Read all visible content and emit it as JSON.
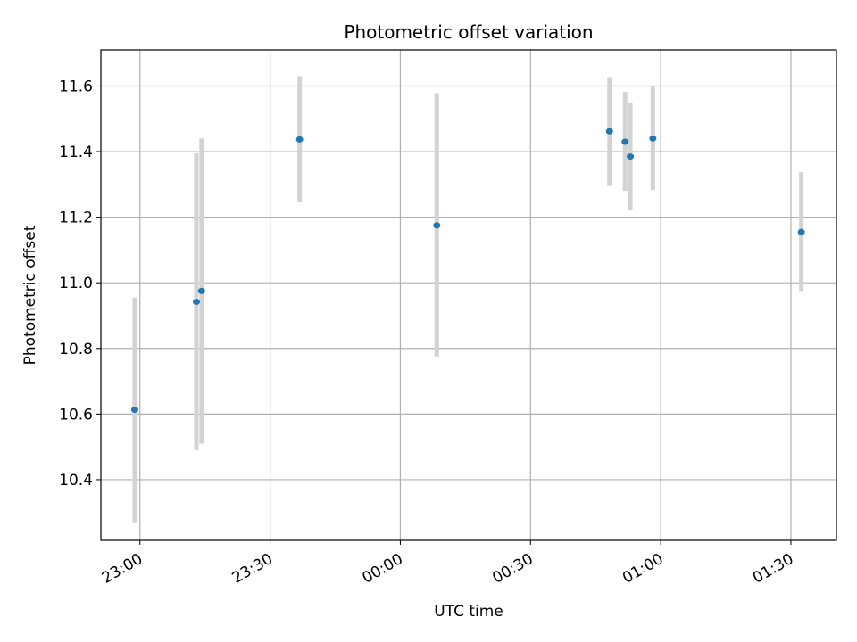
{
  "chart_data": {
    "type": "scatter",
    "title": "Photometric offset variation",
    "xlabel": "UTC time",
    "ylabel": "Photometric offset",
    "x_unit": "minutes relative to 00:00 UTC",
    "xlim": [
      -69.0,
      100.5
    ],
    "ylim": [
      10.215,
      11.71
    ],
    "x_ticks": [
      {
        "value": -60,
        "label": "23:00"
      },
      {
        "value": -30,
        "label": "23:30"
      },
      {
        "value": 0,
        "label": "00:00"
      },
      {
        "value": 30,
        "label": "00:30"
      },
      {
        "value": 60,
        "label": "01:00"
      },
      {
        "value": 90,
        "label": "01:30"
      }
    ],
    "y_ticks": [
      {
        "value": 10.4,
        "label": "10.4"
      },
      {
        "value": 10.6,
        "label": "10.6"
      },
      {
        "value": 10.8,
        "label": "10.8"
      },
      {
        "value": 11.0,
        "label": "11.0"
      },
      {
        "value": 11.2,
        "label": "11.2"
      },
      {
        "value": 11.4,
        "label": "11.4"
      },
      {
        "value": 11.6,
        "label": "11.6"
      }
    ],
    "grid": true,
    "series": [
      {
        "marker_color": "#1f77b4",
        "errorbar_color": "#d3d3d3",
        "points": [
          {
            "time": "22:58:48",
            "y": 10.613,
            "y_low": 10.27,
            "y_high": 10.955
          },
          {
            "time": "23:13:00",
            "y": 10.942,
            "y_low": 10.49,
            "y_high": 11.395
          },
          {
            "time": "23:14:12",
            "y": 10.975,
            "y_low": 10.51,
            "y_high": 11.44
          },
          {
            "time": "23:36:48",
            "y": 11.437,
            "y_low": 11.245,
            "y_high": 11.63
          },
          {
            "time": "00:08:24",
            "y": 11.175,
            "y_low": 10.775,
            "y_high": 11.578
          },
          {
            "time": "00:48:12",
            "y": 11.462,
            "y_low": 11.295,
            "y_high": 11.627
          },
          {
            "time": "00:51:48",
            "y": 11.43,
            "y_low": 11.28,
            "y_high": 11.582
          },
          {
            "time": "00:53:00",
            "y": 11.385,
            "y_low": 11.222,
            "y_high": 11.55
          },
          {
            "time": "00:58:12",
            "y": 11.44,
            "y_low": 11.283,
            "y_high": 11.598
          },
          {
            "time": "01:32:24",
            "y": 11.155,
            "y_low": 10.975,
            "y_high": 11.338
          }
        ]
      }
    ]
  }
}
